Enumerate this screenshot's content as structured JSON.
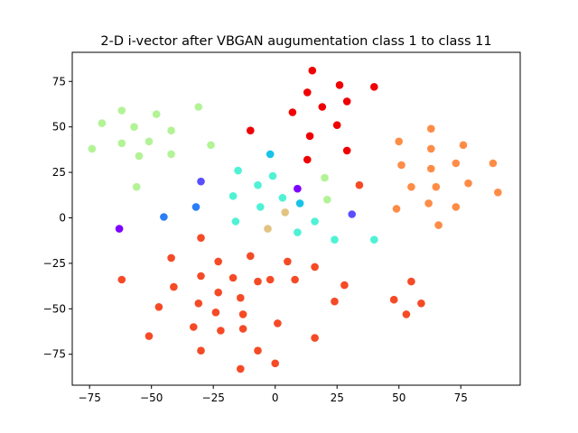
{
  "chart_data": {
    "type": "scatter",
    "title": "2-D i-vector after VBGAN augumentation class 1 to class 11",
    "xlabel": "",
    "ylabel": "",
    "xlim": [
      -82,
      99
    ],
    "ylim": [
      -92,
      91
    ],
    "xticks": [
      -75,
      -50,
      -25,
      0,
      25,
      50,
      75
    ],
    "yticks": [
      -75,
      -50,
      -25,
      0,
      25,
      50,
      75
    ],
    "xtick_labels": [
      "−75",
      "−50",
      "−25",
      "0",
      "25",
      "50",
      "75"
    ],
    "ytick_labels": [
      "−75",
      "−50",
      "−25",
      "0",
      "25",
      "50",
      "75"
    ],
    "grid": false,
    "legend": false,
    "series": [
      {
        "color": "#7f00ff",
        "points": [
          [
            -63,
            -6
          ],
          [
            9,
            16
          ]
        ]
      },
      {
        "color": "#5a4fff",
        "points": [
          [
            -30,
            20
          ],
          [
            31,
            2
          ]
        ]
      },
      {
        "color": "#2c7ef6",
        "points": [
          [
            -45,
            0.5
          ],
          [
            -32,
            6
          ]
        ]
      },
      {
        "color": "#17c3e8",
        "points": [
          [
            -2,
            35
          ],
          [
            10,
            8
          ]
        ]
      },
      {
        "color": "#4ff2d5",
        "points": [
          [
            -15,
            26
          ],
          [
            -17,
            12
          ],
          [
            -16,
            -2
          ],
          [
            -7,
            18
          ],
          [
            -6,
            6
          ],
          [
            -1,
            23
          ],
          [
            3,
            11
          ],
          [
            9,
            -8
          ],
          [
            16,
            -2
          ],
          [
            24,
            -12
          ],
          [
            40,
            -12
          ]
        ]
      },
      {
        "color": "#b2f396",
        "points": [
          [
            -70,
            52
          ],
          [
            -62,
            59
          ],
          [
            -57,
            50
          ],
          [
            -62,
            41
          ],
          [
            -51,
            42
          ],
          [
            -48,
            57
          ],
          [
            -42,
            48
          ],
          [
            -55,
            34
          ],
          [
            -42,
            35
          ],
          [
            -31,
            61
          ],
          [
            -26,
            40
          ],
          [
            -56,
            17
          ],
          [
            -74,
            38
          ],
          [
            20,
            22
          ],
          [
            21,
            10
          ]
        ]
      },
      {
        "color": "#e2c480",
        "points": [
          [
            -3,
            -6
          ],
          [
            4,
            3
          ]
        ]
      },
      {
        "color": "#fe8c46",
        "points": [
          [
            50,
            42
          ],
          [
            51,
            29
          ],
          [
            55,
            17
          ],
          [
            63,
            49
          ],
          [
            63,
            38
          ],
          [
            63,
            27
          ],
          [
            65,
            17
          ],
          [
            62,
            8
          ],
          [
            73,
            30
          ],
          [
            76,
            40
          ],
          [
            78,
            19
          ],
          [
            73,
            6
          ],
          [
            66,
            -4
          ],
          [
            88,
            30
          ],
          [
            90,
            14
          ],
          [
            49,
            5
          ]
        ]
      },
      {
        "color": "#f54a26",
        "points": [
          [
            -62,
            -34
          ],
          [
            -42,
            -22
          ],
          [
            -41,
            -38
          ],
          [
            -47,
            -49
          ],
          [
            -51,
            -65
          ],
          [
            -33,
            -60
          ],
          [
            -31,
            -47
          ],
          [
            -30,
            -11
          ],
          [
            -30,
            -32
          ],
          [
            -23,
            -24
          ],
          [
            -23,
            -41
          ],
          [
            -24,
            -52
          ],
          [
            -22,
            -62
          ],
          [
            -30,
            -73
          ],
          [
            -17,
            -33
          ],
          [
            -14,
            -44
          ],
          [
            -13,
            -53
          ],
          [
            -13,
            -61
          ],
          [
            -14,
            -83
          ],
          [
            -10,
            -21
          ],
          [
            -7,
            -35
          ],
          [
            -7,
            -73
          ],
          [
            -2,
            -34
          ],
          [
            1,
            -58
          ],
          [
            0,
            -80
          ],
          [
            5,
            -24
          ],
          [
            8,
            -34
          ],
          [
            16,
            -27
          ],
          [
            16,
            -66
          ],
          [
            24,
            -46
          ],
          [
            28,
            -37
          ],
          [
            34,
            18
          ],
          [
            48,
            -45
          ],
          [
            53,
            -53
          ],
          [
            55,
            -35
          ],
          [
            59,
            -47
          ]
        ]
      },
      {
        "color": "#f00000",
        "points": [
          [
            15,
            81
          ],
          [
            13,
            69
          ],
          [
            26,
            73
          ],
          [
            40,
            72
          ],
          [
            29,
            64
          ],
          [
            7,
            58
          ],
          [
            19,
            61
          ],
          [
            -10,
            48
          ],
          [
            25,
            51
          ],
          [
            14,
            45
          ],
          [
            29,
            37
          ],
          [
            13,
            32
          ]
        ]
      }
    ]
  }
}
